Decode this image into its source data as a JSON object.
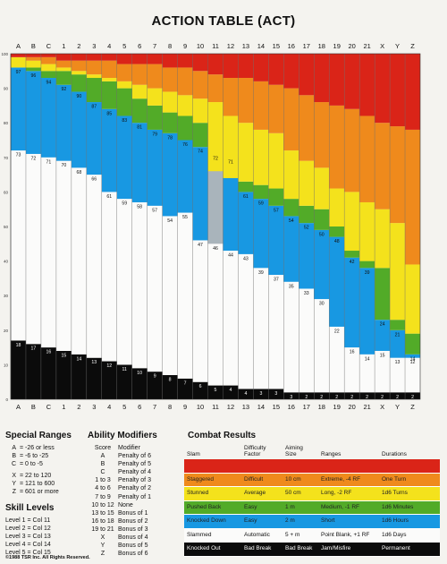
{
  "title": "ACTION TABLE (ACT)",
  "chart_data": {
    "type": "table",
    "columns": [
      "A",
      "B",
      "C",
      "1",
      "2",
      "3",
      "4",
      "5",
      "6",
      "7",
      "8",
      "9",
      "10",
      "11",
      "12",
      "13",
      "14",
      "15",
      "16",
      "17",
      "18",
      "19",
      "20",
      "21",
      "X",
      "Y",
      "Z"
    ],
    "bands": [
      "black",
      "white",
      "blue",
      "green",
      "yellow",
      "orange",
      "red"
    ],
    "band_colors": {
      "black": "#0b0b0b",
      "white": "#fbfbfa",
      "blue": "#1898e2",
      "green": "#52ab28",
      "yellow": "#f4e21c",
      "orange": "#ef8a1c",
      "red": "#da2418"
    },
    "y_axis_ticks": [
      "100",
      "90",
      "80",
      "70",
      "60",
      "50",
      "40",
      "30",
      "20",
      "10",
      "0"
    ],
    "top_labels": {
      "red": [
        "",
        "",
        "",
        "",
        "",
        "",
        "",
        "",
        "",
        "",
        "",
        "",
        "",
        "",
        "",
        "",
        "",
        "",
        "",
        "",
        "",
        "",
        "",
        "",
        "",
        "",
        ""
      ],
      "orange": [
        "",
        "",
        "",
        "",
        "",
        "",
        "",
        "",
        "",
        "",
        "",
        "",
        "",
        "",
        "",
        "",
        "",
        "",
        "",
        "",
        "",
        "",
        "",
        "",
        "",
        "",
        ""
      ]
    },
    "rows": {
      "black": [
        17,
        16,
        15,
        14,
        13,
        12,
        11,
        10,
        9,
        8,
        7,
        6,
        5,
        4,
        4,
        3,
        3,
        3,
        2,
        2,
        2,
        2,
        2,
        2,
        2,
        2,
        2
      ],
      "white": [
        72,
        71,
        70,
        69,
        67,
        65,
        60,
        58,
        57,
        56,
        53,
        54,
        46,
        45,
        43,
        42,
        38,
        36,
        34,
        32,
        29,
        21,
        15,
        13,
        14,
        12,
        12
      ],
      "blue": [
        96,
        95,
        93,
        91,
        89,
        86,
        84,
        82,
        80,
        78,
        77,
        75,
        73,
        71,
        70,
        60,
        58,
        56,
        53,
        51,
        49,
        47,
        41,
        38,
        23,
        20,
        13
      ],
      "green": [
        96,
        96,
        95,
        95,
        94,
        93,
        92,
        90,
        87,
        85,
        83,
        82,
        80,
        66,
        64,
        63,
        62,
        61,
        58,
        56,
        55,
        50,
        43,
        40,
        38,
        23,
        19
      ],
      "yellow": [
        99,
        98,
        97,
        96,
        95,
        94,
        93,
        92,
        91,
        90,
        89,
        88,
        87,
        86,
        82,
        80,
        78,
        77,
        72,
        69,
        67,
        61,
        60,
        57,
        55,
        51,
        39
      ],
      "orange": [
        99,
        99,
        99,
        98,
        98,
        98,
        98,
        97,
        97,
        97,
        96,
        96,
        95,
        94,
        93,
        93,
        92,
        91,
        90,
        88,
        86,
        85,
        84,
        82,
        80,
        79,
        78
      ],
      "red": [
        100,
        100,
        100,
        100,
        100,
        100,
        100,
        100,
        100,
        100,
        100,
        100,
        100,
        100,
        100,
        100,
        100,
        100,
        100,
        100,
        100,
        100,
        100,
        100,
        100,
        100,
        100
      ]
    },
    "labels": {
      "black": [
        "18",
        "17",
        "16",
        "15",
        "14",
        "13",
        "12",
        "11",
        "10",
        "9",
        "8",
        "7",
        "6",
        "5",
        "4",
        "4",
        "3",
        "3",
        "3",
        "2",
        "2",
        "2",
        "2",
        "2",
        "2",
        "2",
        "2"
      ],
      "white": [
        "73",
        "72",
        "71",
        "70",
        "68",
        "66",
        "61",
        "59",
        "58",
        "57",
        "54",
        "55",
        "47",
        "46",
        "44",
        "43",
        "39",
        "37",
        "35",
        "33",
        "30",
        "22",
        "16",
        "14",
        "15",
        "13",
        "12"
      ],
      "blue": [
        "97",
        "96",
        "94",
        "92",
        "90",
        "87",
        "85",
        "83",
        "81",
        "79",
        "78",
        "76",
        "74",
        "72",
        "71",
        "61",
        "59",
        "57",
        "54",
        "52",
        "50",
        "48",
        "42",
        "39",
        "24",
        "21",
        "14"
      ],
      "green": [
        "",
        "",
        "",
        "",
        "",
        "",
        "",
        "",
        "",
        "",
        "",
        "",
        "",
        "",
        "",
        "",
        "",
        "",
        "",
        "",
        "",
        "",
        "",
        "",
        "",
        "",
        ""
      ],
      "yellow": [
        "",
        "",
        "",
        "",
        "",
        "",
        "",
        "",
        "",
        "",
        "",
        "",
        "",
        "",
        "",
        "",
        "",
        "",
        "",
        "",
        "",
        "",
        "",
        "",
        "",
        "",
        ""
      ]
    },
    "grey_column_override": {
      "column_index": 13,
      "band": "blue",
      "color": "#a9b4bb"
    }
  },
  "special_ranges": {
    "title": "Special Ranges",
    "rows": [
      {
        "code": "A",
        "range": "= -26 or less"
      },
      {
        "code": "B",
        "range": "= -6 to -25"
      },
      {
        "code": "C",
        "range": "= 0 to -5"
      },
      {
        "code": "",
        "range": ""
      },
      {
        "code": "X",
        "range": "= 22 to 120"
      },
      {
        "code": "Y",
        "range": "= 121 to 600"
      },
      {
        "code": "Z",
        "range": "= 601 or more"
      }
    ]
  },
  "skill_levels": {
    "title": "Skill Levels",
    "rows": [
      "Level 1 = Col 11",
      "Level 2 = Col 12",
      "Level 3 = Col 13",
      "Level 4 = Col 14",
      "Level 5 = Col 15"
    ]
  },
  "ability_modifiers": {
    "title": "Ability Modifiers",
    "header": {
      "score": "Score",
      "modifier": "Modifier"
    },
    "rows": [
      {
        "score": "A",
        "modifier": "Penalty of 6"
      },
      {
        "score": "B",
        "modifier": "Penalty of 5"
      },
      {
        "score": "C",
        "modifier": "Penalty of 4"
      },
      {
        "score": "1 to 3",
        "modifier": "Penalty of 3"
      },
      {
        "score": "4 to 6",
        "modifier": "Penalty of 2"
      },
      {
        "score": "7 to 9",
        "modifier": "Penalty of 1"
      },
      {
        "score": "10 to 12",
        "modifier": "None"
      },
      {
        "score": "13 to 15",
        "modifier": "Bonus of 1"
      },
      {
        "score": "16 to 18",
        "modifier": "Bonus of 2"
      },
      {
        "score": "19 to 21",
        "modifier": "Bonus of 3"
      },
      {
        "score": "X",
        "modifier": "Bonus of 4"
      },
      {
        "score": "Y",
        "modifier": "Bonus of 5"
      },
      {
        "score": "Z",
        "modifier": "Bonus of 6"
      }
    ]
  },
  "combat_results": {
    "title": "Combat Results",
    "headers": {
      "result": "Slam",
      "difficulty": "Difficulty Factor",
      "aiming": "Aiming Size",
      "ranges": "Ranges",
      "durations": "Durations"
    },
    "rows": [
      {
        "color": "#da2418",
        "text_color": "#7a140e",
        "result": "",
        "difficulty": "",
        "aiming": "",
        "ranges": "",
        "durations": ""
      },
      {
        "color": "#ef8a1c",
        "text_color": "#222",
        "result": "Staggered",
        "difficulty": "Difficult",
        "aiming": "10 cm",
        "ranges": "Extreme, -4 RF",
        "durations": "One Turn"
      },
      {
        "color": "#f4e21c",
        "text_color": "#222",
        "result": "Stunned",
        "difficulty": "Average",
        "aiming": "50 cm",
        "ranges": "Long, -2 RF",
        "durations": "1d6 Turns"
      },
      {
        "color": "#52ab28",
        "text_color": "#222",
        "result": "Pushed Back",
        "difficulty": "Easy",
        "aiming": "1 m",
        "ranges": "Medium, -1 RF",
        "durations": "1d6 Minutes"
      },
      {
        "color": "#1898e2",
        "text_color": "#222",
        "result": "Knocked Down",
        "difficulty": "Easy",
        "aiming": "2 m",
        "ranges": "Short",
        "durations": "1d6 Hours"
      },
      {
        "color": "#fbfbfa",
        "text_color": "#111",
        "result": "Slammed",
        "difficulty": "Automatic",
        "aiming": "5 + m",
        "ranges": "Point Blank, +1 RF",
        "durations": "1d6 Days"
      },
      {
        "color": "#0b0b0b",
        "text_color": "#ffffff",
        "result": "Knocked Out",
        "difficulty": "Bad Break",
        "aiming": "Bad Break",
        "ranges": "Jam/Misfire",
        "durations": "Permanent"
      }
    ]
  },
  "copyright": "©1988 TSR Inc. All Rights Reserved."
}
